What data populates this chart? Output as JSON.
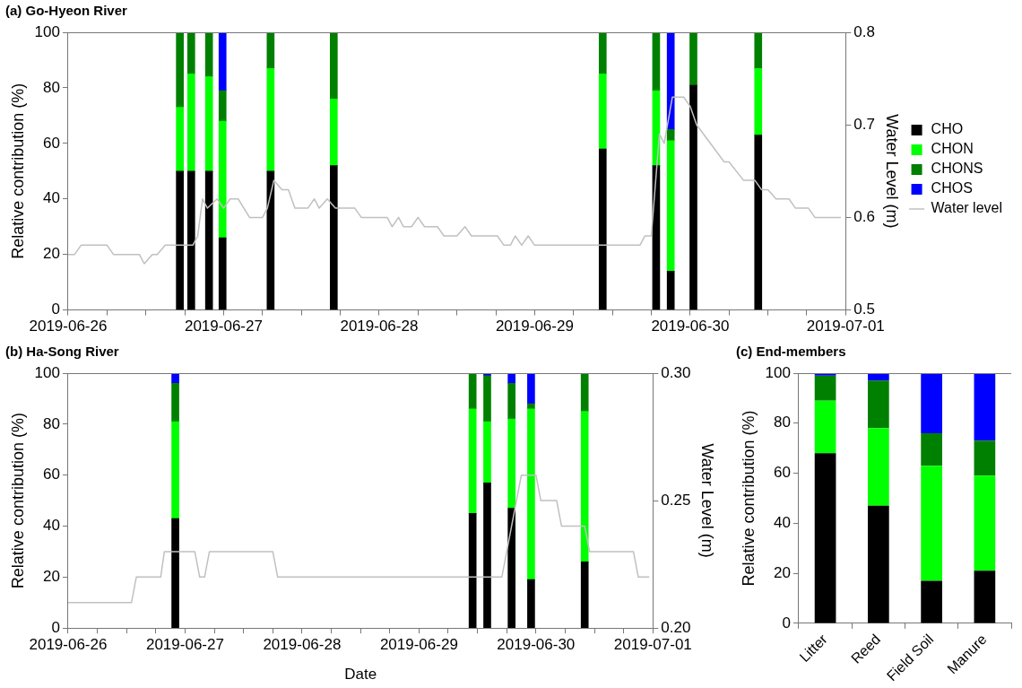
{
  "chart_data": [
    {
      "type": "bar",
      "title": "(a) Go-Hyeon River",
      "ylabel": "Relative contribution (%)",
      "y2label": "Water Level (m)",
      "stacked": true,
      "grid": false,
      "legend": "right",
      "x": [
        "2019-06-26T17:15",
        "2019-06-26T19:00",
        "2019-06-26T21:45",
        "2019-06-26T23:50",
        "2019-06-27T07:15",
        "2019-06-27T17:00",
        "2019-06-29T10:30",
        "2019-06-29T18:45",
        "2019-06-29T21:00",
        "2019-06-30T00:30",
        "2019-06-30T10:30"
      ],
      "xlim": [
        "2019-06-26",
        "2019-07-01"
      ],
      "xticks": [
        "2019-06-26",
        {
          "value": "2019-06-26T06:00",
          "label": null
        },
        {
          "value": "2019-06-26T12:00",
          "label": null
        },
        {
          "value": "2019-06-26T18:00",
          "label": null
        },
        "2019-06-27",
        {
          "value": "2019-06-27T06:00",
          "label": null
        },
        {
          "value": "2019-06-27T12:00",
          "label": null
        },
        {
          "value": "2019-06-27T18:00",
          "label": null
        },
        "2019-06-28",
        {
          "value": "2019-06-28T06:00",
          "label": null
        },
        {
          "value": "2019-06-28T12:00",
          "label": null
        },
        {
          "value": "2019-06-28T18:00",
          "label": null
        },
        "2019-06-29",
        {
          "value": "2019-06-29T06:00",
          "label": null
        },
        {
          "value": "2019-06-29T12:00",
          "label": null
        },
        {
          "value": "2019-06-29T18:00",
          "label": null
        },
        "2019-06-30",
        {
          "value": "2019-06-30T06:00",
          "label": null
        },
        {
          "value": "2019-06-30T12:00",
          "label": null
        },
        {
          "value": "2019-06-30T18:00",
          "label": null
        },
        "2019-07-01"
      ],
      "ylim": [
        0,
        100
      ],
      "yticks": [
        0,
        20,
        40,
        60,
        80,
        100
      ],
      "y2lim": [
        0.5,
        0.8
      ],
      "y2ticks": [
        0.5,
        0.6,
        0.7,
        0.8
      ],
      "series": [
        {
          "name": "CHO",
          "color": "#000000",
          "values": [
            50,
            50,
            50,
            26,
            50,
            52,
            58,
            52,
            14,
            81,
            63
          ]
        },
        {
          "name": "CHON",
          "color": "#00ff00",
          "values": [
            23,
            35,
            34,
            42,
            37,
            24,
            27,
            27,
            47,
            0,
            24
          ]
        },
        {
          "name": "CHONS",
          "color": "#008000",
          "values": [
            27,
            15,
            16,
            11,
            13,
            24,
            15,
            21,
            4,
            19,
            13
          ]
        },
        {
          "name": "CHOS",
          "color": "#0000ff",
          "values": [
            0,
            0,
            0,
            21,
            0,
            0,
            0,
            0,
            35,
            0,
            0
          ]
        },
        {
          "name": "Water level",
          "type": "line",
          "axis": "y2",
          "color": "#c0c0c0",
          "x": [
            "2019-06-26T00:00",
            "2019-06-26T01:00",
            "2019-06-26T02:00",
            "2019-06-26T06:00",
            "2019-06-26T07:00",
            "2019-06-26T11:00",
            "2019-06-26T11:45",
            "2019-06-26T13:00",
            "2019-06-26T13:45",
            "2019-06-26T15:00",
            "2019-06-26T19:15",
            "2019-06-26T20:00",
            "2019-06-26T20:45",
            "2019-06-26T21:30",
            "2019-06-26T23:00",
            "2019-06-27T00:00",
            "2019-06-27T01:00",
            "2019-06-27T02:15",
            "2019-06-27T04:00",
            "2019-06-27T06:00",
            "2019-06-27T06:45",
            "2019-06-27T07:45",
            "2019-06-27T09:00",
            "2019-06-27T10:00",
            "2019-06-27T11:00",
            "2019-06-27T13:00",
            "2019-06-27T14:00",
            "2019-06-27T14:45",
            "2019-06-27T16:00",
            "2019-06-27T17:15",
            "2019-06-27T20:15",
            "2019-06-27T21:15",
            "2019-06-28T01:15",
            "2019-06-28T02:00",
            "2019-06-28T03:00",
            "2019-06-28T03:45",
            "2019-06-28T05:00",
            "2019-06-28T06:00",
            "2019-06-28T07:00",
            "2019-06-28T09:00",
            "2019-06-28T10:00",
            "2019-06-28T12:00",
            "2019-06-28T13:15",
            "2019-06-28T14:15",
            "2019-06-28T18:15",
            "2019-06-28T19:15",
            "2019-06-28T20:15",
            "2019-06-28T21:00",
            "2019-06-28T22:00",
            "2019-06-28T23:00",
            "2019-06-29T00:00",
            "2019-06-29T16:15",
            "2019-06-29T17:00",
            "2019-06-29T18:00",
            "2019-06-29T19:15",
            "2019-06-29T20:00",
            "2019-06-29T21:15",
            "2019-06-29T23:00",
            "2019-06-30T00:00",
            "2019-06-30T01:00",
            "2019-06-30T05:15",
            "2019-06-30T06:00",
            "2019-06-30T08:15",
            "2019-06-30T10:00",
            "2019-06-30T11:00",
            "2019-06-30T12:00",
            "2019-06-30T13:15",
            "2019-06-30T15:15",
            "2019-06-30T16:15",
            "2019-06-30T18:15",
            "2019-06-30T19:15",
            "2019-06-30T23:15"
          ],
          "values": [
            0.56,
            0.56,
            0.57,
            0.57,
            0.56,
            0.56,
            0.55,
            0.56,
            0.56,
            0.57,
            0.57,
            0.58,
            0.62,
            0.61,
            0.62,
            0.61,
            0.62,
            0.62,
            0.6,
            0.6,
            0.61,
            0.64,
            0.63,
            0.63,
            0.61,
            0.61,
            0.62,
            0.61,
            0.62,
            0.61,
            0.61,
            0.6,
            0.6,
            0.59,
            0.6,
            0.59,
            0.59,
            0.6,
            0.59,
            0.59,
            0.58,
            0.58,
            0.59,
            0.58,
            0.58,
            0.57,
            0.57,
            0.58,
            0.57,
            0.58,
            0.57,
            0.57,
            0.58,
            0.58,
            0.69,
            0.68,
            0.73,
            0.73,
            0.72,
            0.7,
            0.66,
            0.66,
            0.64,
            0.64,
            0.63,
            0.63,
            0.62,
            0.62,
            0.61,
            0.61,
            0.6,
            0.6
          ]
        }
      ]
    },
    {
      "type": "bar",
      "title": "(b) Ha-Song River",
      "xlabel": "Date",
      "ylabel": "Relative contribution (%)",
      "y2label": "Water Level (m)",
      "stacked": true,
      "grid": false,
      "x": [
        "2019-06-26T22:00",
        "2019-06-29T11:00",
        "2019-06-29T14:00",
        "2019-06-29T19:00",
        "2019-06-29T23:00",
        "2019-06-30T10:00"
      ],
      "xlim": [
        "2019-06-26",
        "2019-07-01"
      ],
      "xticks": [
        "2019-06-26",
        {
          "value": "2019-06-26T06:00",
          "label": null
        },
        {
          "value": "2019-06-26T12:00",
          "label": null
        },
        {
          "value": "2019-06-26T18:00",
          "label": null
        },
        "2019-06-27",
        {
          "value": "2019-06-27T06:00",
          "label": null
        },
        {
          "value": "2019-06-27T12:00",
          "label": null
        },
        {
          "value": "2019-06-27T18:00",
          "label": null
        },
        "2019-06-28",
        {
          "value": "2019-06-28T06:00",
          "label": null
        },
        {
          "value": "2019-06-28T12:00",
          "label": null
        },
        {
          "value": "2019-06-28T18:00",
          "label": null
        },
        "2019-06-29",
        {
          "value": "2019-06-29T06:00",
          "label": null
        },
        {
          "value": "2019-06-29T12:00",
          "label": null
        },
        {
          "value": "2019-06-29T18:00",
          "label": null
        },
        "2019-06-30",
        {
          "value": "2019-06-30T06:00",
          "label": null
        },
        {
          "value": "2019-06-30T12:00",
          "label": null
        },
        {
          "value": "2019-06-30T18:00",
          "label": null
        },
        "2019-07-01"
      ],
      "ylim": [
        0,
        100
      ],
      "yticks": [
        0,
        20,
        40,
        60,
        80,
        100
      ],
      "y2lim": [
        0.2,
        0.3
      ],
      "y2ticks": [
        {
          "value": 0.2,
          "label": "0.20"
        },
        {
          "value": 0.25,
          "label": "0.25"
        },
        {
          "value": 0.3,
          "label": "0.30"
        }
      ],
      "series": [
        {
          "color": "#000000",
          "values": [
            43,
            45,
            57,
            47,
            19,
            26
          ]
        },
        {
          "color": "#00ff00",
          "values": [
            38,
            41,
            24,
            35,
            67,
            59
          ]
        },
        {
          "color": "#008000",
          "values": [
            15,
            14,
            18,
            14,
            2,
            15
          ]
        },
        {
          "color": "#0000ff",
          "values": [
            4,
            0,
            1,
            4,
            12,
            0
          ]
        },
        {
          "type": "line",
          "axis": "y2",
          "color": "#c0c0c0",
          "x": [
            "2019-06-26T00:00",
            "2019-06-26T13:00",
            "2019-06-26T14:00",
            "2019-06-26T19:00",
            "2019-06-26T19:45",
            "2019-06-27T02:00",
            "2019-06-27T03:00",
            "2019-06-27T04:00",
            "2019-06-27T05:00",
            "2019-06-27T18:00",
            "2019-06-27T19:00",
            "2019-06-29T17:00",
            "2019-06-29T21:00",
            "2019-06-30T00:00",
            "2019-06-30T01:00",
            "2019-06-30T04:15",
            "2019-06-30T05:15",
            "2019-06-30T10:00",
            "2019-06-30T11:00",
            "2019-06-30T20:00",
            "2019-06-30T21:00",
            "2019-06-30T23:15"
          ],
          "values": [
            0.21,
            0.21,
            0.22,
            0.22,
            0.23,
            0.23,
            0.22,
            0.22,
            0.23,
            0.23,
            0.22,
            0.22,
            0.26,
            0.26,
            0.25,
            0.25,
            0.24,
            0.24,
            0.23,
            0.23,
            0.22,
            0.22
          ]
        }
      ]
    },
    {
      "type": "bar",
      "title": "(c) End-members",
      "ylabel": "Relative contribution (%)",
      "stacked": true,
      "grid": false,
      "categories": [
        "Litter",
        "Reed",
        "Field Soil",
        "Manure"
      ],
      "ylim": [
        0,
        100
      ],
      "yticks": [
        0,
        20,
        40,
        60,
        80,
        100
      ],
      "series": [
        {
          "color": "#000000",
          "values": [
            68,
            47,
            17,
            21
          ]
        },
        {
          "color": "#00ff00",
          "values": [
            21,
            31,
            46,
            38
          ]
        },
        {
          "color": "#008000",
          "values": [
            10,
            19,
            13,
            14
          ]
        },
        {
          "color": "#0000ff",
          "values": [
            1,
            3,
            24,
            27
          ]
        }
      ]
    }
  ]
}
